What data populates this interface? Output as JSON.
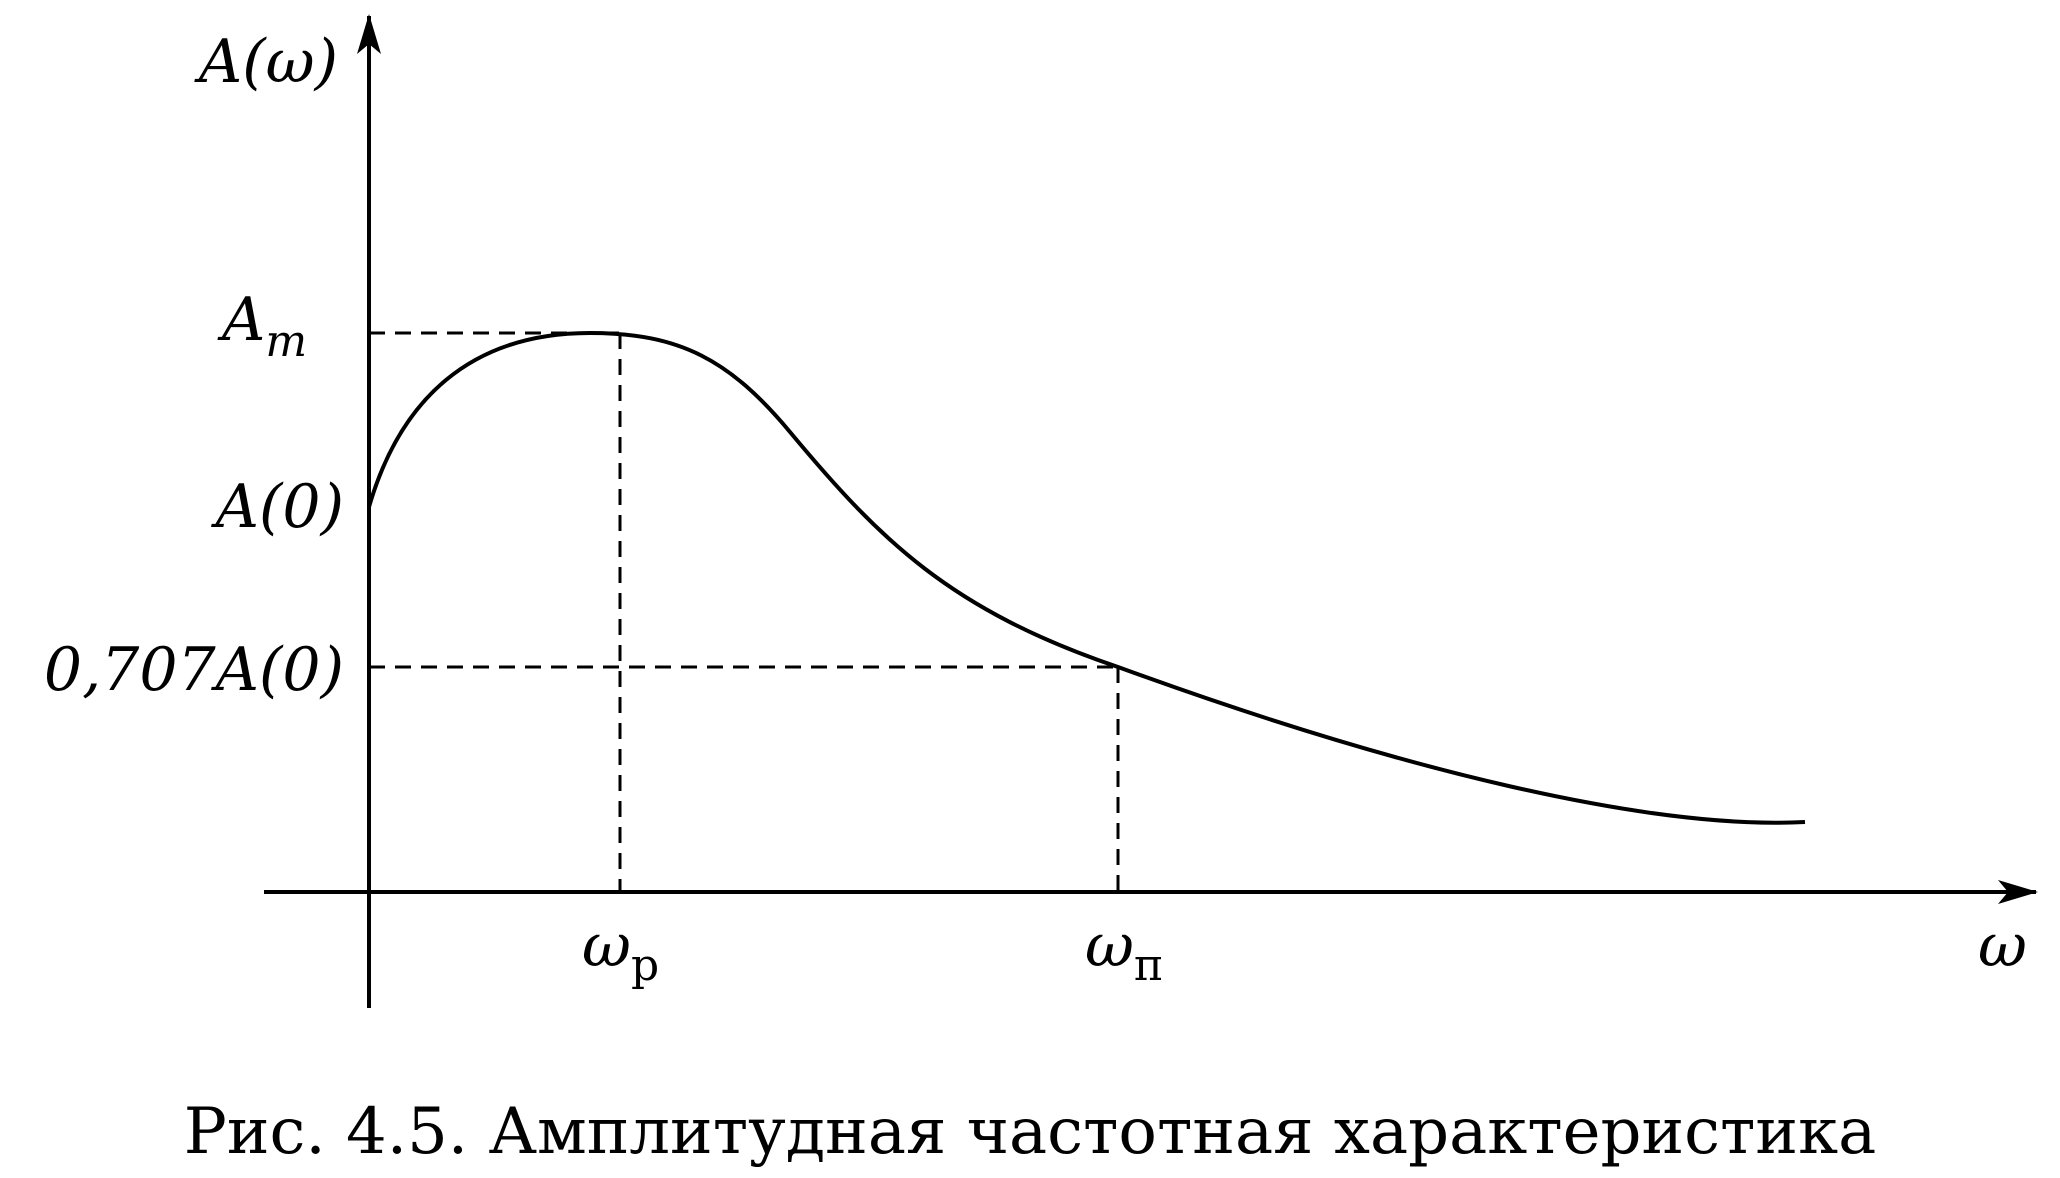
{
  "axes": {
    "y_label": "A(ω)",
    "x_label": "ω"
  },
  "y_marks": {
    "peak": "A",
    "peak_subscript": "m",
    "zero_freq": "A(0)",
    "cutoff_level": "0,707A(0)"
  },
  "x_marks": {
    "resonance": "ω",
    "resonance_subscript": "р",
    "cutoff": "ω",
    "cutoff_subscript": "п"
  },
  "caption": "Рис. 4.5. Амплитудная частотная характеристика",
  "colors": {
    "stroke": "#000000",
    "background": "#ffffff"
  }
}
